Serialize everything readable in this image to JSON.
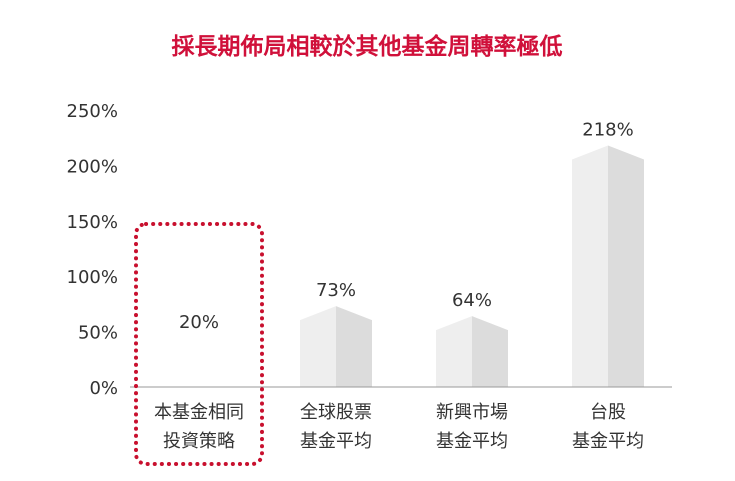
{
  "chart_data": {
    "type": "bar",
    "title": "採長期佈局相較於其他基金周轉率極低",
    "categories": [
      [
        "本基金相同",
        "投資策略"
      ],
      [
        "全球股票",
        "基金平均"
      ],
      [
        "新興市場",
        "基金平均"
      ],
      [
        "台股",
        "基金平均"
      ]
    ],
    "values": [
      20,
      73,
      64,
      218
    ],
    "data_labels": [
      "20%",
      "73%",
      "64%",
      "218%"
    ],
    "yticks": [
      "0%",
      "50%",
      "100%",
      "150%",
      "200%",
      "250%"
    ],
    "ylim": [
      0,
      250
    ],
    "grid": false,
    "highlight_index": 0,
    "colors": {
      "title": "#d0103a",
      "text": "#333333",
      "axis": "#9a9a9a",
      "bar_front": "#eeeeee",
      "bar_side": "#dcdcdc",
      "bar_top": "#f6f6f6",
      "highlight_border": "#c8102e"
    }
  }
}
